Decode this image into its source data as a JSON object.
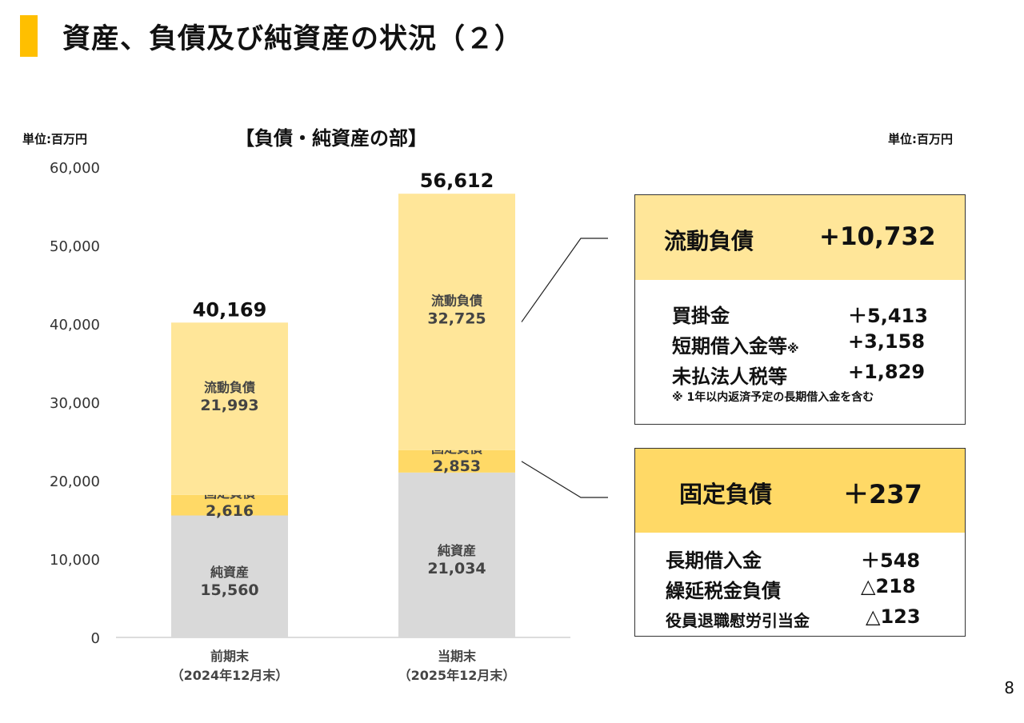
{
  "slide": {
    "title": "資産、負債及び純資産の状況（２）",
    "page_number": "8",
    "unit_left": "単位:百万円",
    "unit_right": "単位:百万円",
    "chart_heading": "【負債・純資産の部】"
  },
  "colors": {
    "accent": "#ffbf00",
    "current_liabilities": "#ffe699",
    "fixed_liabilities": "#ffd966",
    "net_assets": "#d9d9d9"
  },
  "chart_data": {
    "type": "bar",
    "stacked": true,
    "categories": [
      [
        "前期末",
        "（2024年12月末）"
      ],
      [
        "当期末",
        "（2025年12月末）"
      ]
    ],
    "series": [
      {
        "name": "純資産",
        "values": [
          15560,
          21034
        ],
        "labels": [
          "15,560",
          "21,034"
        ]
      },
      {
        "name": "固定負債",
        "values": [
          2616,
          2853
        ],
        "labels": [
          "2,616",
          "2,853"
        ]
      },
      {
        "name": "流動負債",
        "values": [
          21993,
          32725
        ],
        "labels": [
          "21,993",
          "32,725"
        ]
      }
    ],
    "totals": [
      40169,
      56612
    ],
    "total_labels": [
      "40,169",
      "56,612"
    ],
    "y_ticks": [
      "0",
      "10,000",
      "20,000",
      "30,000",
      "40,000",
      "50,000",
      "60,000"
    ],
    "ylim": [
      0,
      60000
    ],
    "grid": false,
    "legend": "none"
  },
  "current_liabilities_box": {
    "title": "流動負債",
    "change": "+10,732",
    "items": [
      {
        "label": "買掛金",
        "value": "＋5,413"
      },
      {
        "label": "短期借入金等",
        "label_mark": "※",
        "value": "+3,158"
      },
      {
        "label": "未払法人税等",
        "value": "+1,829"
      }
    ],
    "note": "※ 1年以内返済予定の長期借入金を含む"
  },
  "fixed_liabilities_box": {
    "title": "固定負債",
    "change": "＋237",
    "items": [
      {
        "label": "長期借入金",
        "value": "＋548"
      },
      {
        "label": "繰延税金負債",
        "value": "△218"
      },
      {
        "label": "役員退職慰労引当金",
        "value": "△123"
      }
    ]
  }
}
